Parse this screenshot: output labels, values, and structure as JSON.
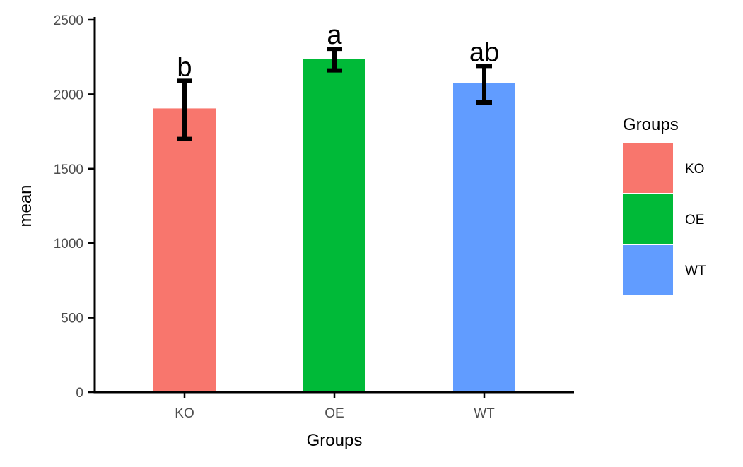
{
  "chart_data": {
    "type": "bar",
    "categories": [
      "KO",
      "OE",
      "WT"
    ],
    "values": [
      1905,
      2235,
      2075
    ],
    "error_low": [
      1700,
      2160,
      1945
    ],
    "error_high": [
      2090,
      2305,
      2190
    ],
    "significance_labels": [
      "b",
      "a",
      "ab"
    ],
    "colors": [
      "#F8766D",
      "#00BA38",
      "#619CFF"
    ],
    "xlabel": "Groups",
    "ylabel": "mean",
    "ylim": [
      0,
      2500
    ],
    "yticks": [
      0,
      500,
      1000,
      1500,
      2000,
      2500
    ],
    "grid": false,
    "legend": {
      "title": "Groups",
      "position": "right",
      "items": [
        "KO",
        "OE",
        "WT"
      ]
    }
  }
}
